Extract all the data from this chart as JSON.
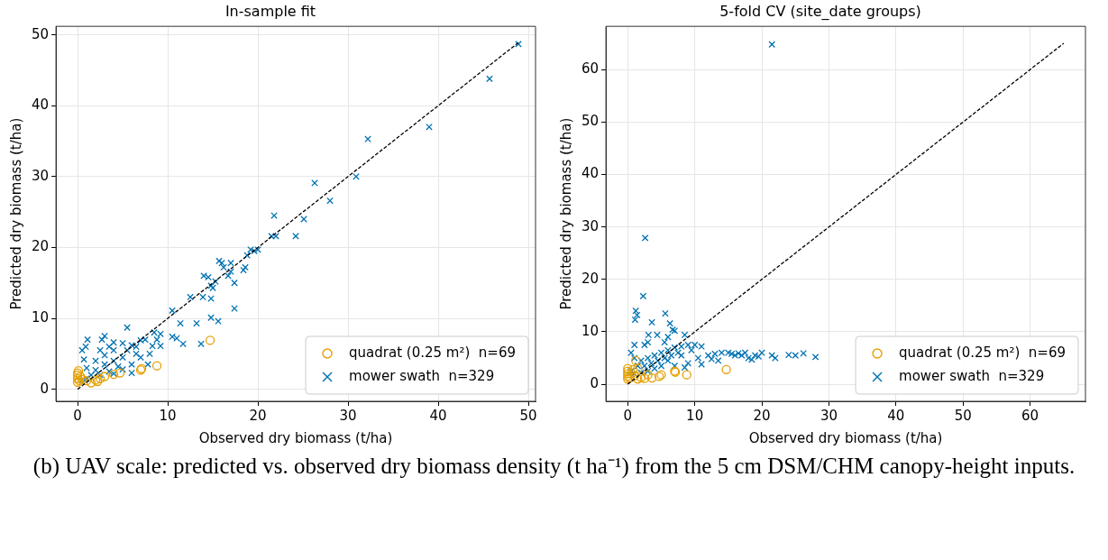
{
  "chart_data": [
    {
      "type": "scatter",
      "title": "In-sample fit",
      "xlabel": "Observed dry biomass (t/ha)",
      "ylabel": "Predicted dry biomass (t/ha)",
      "xlim": [
        -2.4,
        50.8
      ],
      "ylim": [
        -1.7,
        51.2
      ],
      "xticks": [
        0,
        10,
        20,
        30,
        40,
        50
      ],
      "yticks": [
        0,
        10,
        20,
        30,
        40,
        50
      ],
      "grid": true,
      "legend": "bottom right",
      "series": [
        {
          "name": "quadrat (0.25 m²)  n=69",
          "color": "#e69f00",
          "marker": "circle",
          "x": [
            14.7,
            8.8,
            7,
            7.1,
            4.7,
            0,
            0,
            0,
            0,
            0.2,
            0.3,
            0.5,
            1.5,
            2,
            2.5,
            3,
            1,
            0.1,
            4,
            2.2
          ],
          "values": [
            6.9,
            3.3,
            2.7,
            2.9,
            2.3,
            1,
            1.5,
            2,
            2.3,
            1.2,
            1.8,
            1.4,
            0.9,
            1.3,
            1.5,
            1.8,
            1.2,
            2.6,
            2.1,
            1.1
          ]
        },
        {
          "name": "mower swath  n=329",
          "color": "#0072b2",
          "marker": "cross",
          "x": [
            48.9,
            45.7,
            39,
            32.2,
            30.9,
            26.3,
            28,
            21.8,
            25.1,
            21.5,
            22,
            24.2,
            19.2,
            20,
            19.6,
            18.8,
            15.7,
            16,
            17,
            18.6,
            18.4,
            16.2,
            17,
            16.7,
            14,
            14.5,
            15.3,
            14.8,
            17.4,
            15,
            12.5,
            13.9,
            14.8,
            10.5,
            17.4,
            11.4,
            13.2,
            14.8,
            15.6,
            13.7,
            11.7,
            10.5,
            11,
            9.2,
            8.8,
            8.3,
            9.2,
            8.5,
            5.5,
            1.1,
            0.9,
            0.5,
            0.7,
            2.7,
            3,
            4,
            5,
            6,
            7,
            7.5,
            6.5,
            5,
            4,
            3,
            2,
            1.5,
            1,
            0.5,
            2.5,
            3.5,
            4.5,
            6,
            7,
            8,
            3,
            2,
            1,
            4,
            5.5,
            6.5,
            2.5,
            3.5,
            5,
            6,
            4,
            7.8
          ],
          "values": [
            48.7,
            43.8,
            37,
            35.3,
            30,
            29.1,
            26.6,
            24.5,
            24,
            21.6,
            21.6,
            21.6,
            19.7,
            19.7,
            19.5,
            18.9,
            18.1,
            17.8,
            17.8,
            17.2,
            16.8,
            17.2,
            16.6,
            16,
            16,
            15.8,
            15.2,
            14.6,
            15,
            14.3,
            13,
            13,
            12.8,
            11.1,
            11.4,
            9.3,
            9.3,
            10.1,
            9.6,
            6.4,
            6.4,
            7.4,
            7.2,
            7.8,
            7,
            6.1,
            6.1,
            8,
            8.7,
            7,
            6,
            5.5,
            4.2,
            7,
            7.5,
            6.6,
            6.5,
            6.2,
            6.9,
            7,
            5,
            4.5,
            4,
            3.5,
            2.7,
            2,
            1.5,
            1.2,
            2,
            2.5,
            3.2,
            3.5,
            4.5,
            5,
            4.8,
            4,
            3,
            5.5,
            5.5,
            6,
            5.5,
            6,
            2.8,
            2.3,
            2.2,
            3.5
          ]
        },
        {
          "type": "line",
          "color": "#000000",
          "line_style": "dashed",
          "marker": "none",
          "x": [
            0,
            48.9
          ],
          "values": [
            0,
            48.9
          ]
        }
      ]
    },
    {
      "type": "scatter",
      "title": "5-fold CV (site_date groups)",
      "xlabel": "Observed dry biomass (t/ha)",
      "ylabel": "Predicted dry biomass (t/ha)",
      "xlim": [
        -3.25,
        68.25
      ],
      "ylim": [
        -3.25,
        68.25
      ],
      "xticks": [
        0,
        10,
        20,
        30,
        40,
        50,
        60
      ],
      "yticks": [
        0,
        10,
        20,
        30,
        40,
        50,
        60
      ],
      "grid": true,
      "legend": "bottom right",
      "annotations": [
        "(b) UAV scale: predicted vs. observed dry biomass density (t ha⁻¹) from the 5 cm DSM/CHM canopy-height inputs."
      ],
      "series": [
        {
          "name": "quadrat (0.25 m²)  n=69",
          "color": "#e69f00",
          "marker": "circle",
          "x": [
            14.7,
            8.8,
            7,
            7.1,
            4.7,
            3.6,
            1.5,
            0,
            0,
            0,
            0,
            0,
            0.3,
            0.5,
            1,
            1.2,
            2,
            2.5,
            3,
            1.5,
            0.8,
            5
          ],
          "values": [
            2.8,
            1.8,
            2.5,
            2.3,
            1.5,
            1.2,
            1,
            1,
            1.5,
            2,
            2.5,
            3,
            1.2,
            2,
            1.6,
            4.5,
            1.3,
            1.1,
            1.8,
            3,
            2.8,
            1.8
          ]
        },
        {
          "name": "mower swath  n=329",
          "color": "#0072b2",
          "marker": "cross",
          "x": [
            21.5,
            2.6,
            2.3,
            1.2,
            1.4,
            1.1,
            5.6,
            3.6,
            6.3,
            7,
            6.7,
            3.1,
            4.4,
            8.5,
            3,
            5.5,
            6,
            2.5,
            1,
            0.5,
            1,
            2,
            3,
            4,
            5,
            6,
            7,
            8,
            9,
            10,
            11,
            12,
            12.5,
            13.5,
            14,
            15,
            15.5,
            16,
            17,
            17.5,
            18,
            18.5,
            19,
            20,
            21.5,
            22,
            24,
            25,
            26.2,
            28,
            11,
            10.5,
            9,
            8.5,
            7,
            6,
            5,
            4,
            3,
            2,
            1,
            0.5,
            1.5,
            2.5,
            3.5,
            4.5,
            5.5,
            6.5,
            7.5,
            8,
            9.5,
            13,
            16.5,
            19.5
          ],
          "values": [
            64.8,
            27.9,
            16.8,
            14,
            13.2,
            12.3,
            13.5,
            11.8,
            11.6,
            10.2,
            10.4,
            9.4,
            9.4,
            9.4,
            8,
            8,
            9,
            7.5,
            7.5,
            6,
            5,
            4.5,
            5,
            5.5,
            6,
            6.5,
            7,
            7.2,
            7.5,
            7.5,
            7.2,
            5.5,
            4.8,
            4.5,
            6,
            6,
            5.8,
            5.5,
            5.5,
            6,
            5,
            4.7,
            5.5,
            6,
            5.5,
            5,
            5.6,
            5.5,
            5.9,
            5.2,
            3.8,
            5,
            4,
            3.2,
            3.5,
            4.5,
            3.5,
            3,
            2.5,
            2.2,
            2,
            2.5,
            3.5,
            3.5,
            4,
            4.5,
            5,
            5.5,
            6,
            5.5,
            6.5,
            5.8,
            5.9,
            5.3
          ]
        },
        {
          "type": "line",
          "color": "#000000",
          "line_style": "dashed",
          "marker": "none",
          "x": [
            0,
            65
          ],
          "values": [
            0,
            65
          ]
        }
      ]
    }
  ]
}
